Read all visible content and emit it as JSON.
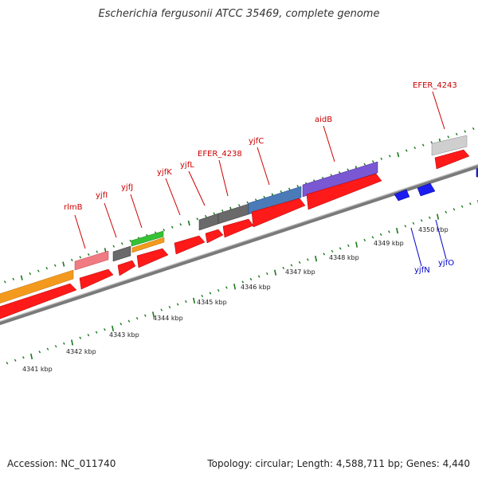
{
  "title": "Escherichia fergusonii ATCC 35469, complete genome",
  "footer": {
    "accession": "Accession: NC_011740",
    "stats": "Topology: circular; Length: 4,588,711 bp; Genes: 4,440"
  },
  "colors": {
    "cds": "#ff0000",
    "label_top": "#cc0000",
    "label_bottom": "#0000cc",
    "tick": "#1a7a1a",
    "backbone": "#888888"
  },
  "ruler": {
    "labels": [
      "4341 kbp",
      "4342 kbp",
      "4343 kbp",
      "4344 kbp",
      "4345 kbp",
      "4346 kbp",
      "4347 kbp",
      "4348 kbp",
      "4349 kbp",
      "4350 kbp"
    ]
  },
  "gene_labels": {
    "top": [
      "rlmB",
      "yjfI",
      "yjfJ",
      "yjfK",
      "yjfL",
      "EFER_4238",
      "yjfC",
      "aidB",
      "EFER_4243"
    ],
    "bottom": [
      "yjfN",
      "yjfO"
    ]
  }
}
